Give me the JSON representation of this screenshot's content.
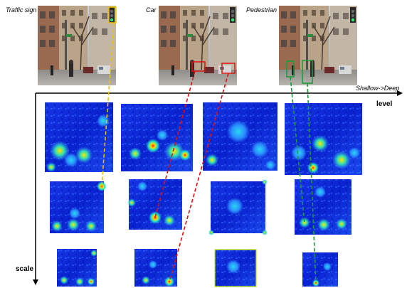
{
  "photos": [
    {
      "label": "Traffic sign"
    },
    {
      "label": "Car"
    },
    {
      "label": "Pedestrian"
    }
  ],
  "axes": {
    "level_direction": "Shallow->Deep",
    "level_label": "level",
    "scale_label": "scale"
  },
  "heatmap_grid": {
    "rows": 3,
    "columns": 4
  },
  "colors": {
    "traffic_sign_link": "#f2c200",
    "car_link": "#e01010",
    "pedestrian_link": "#1a9a3a",
    "heat_low": "#0a1fd8",
    "heat_high": "#ff2a00"
  }
}
